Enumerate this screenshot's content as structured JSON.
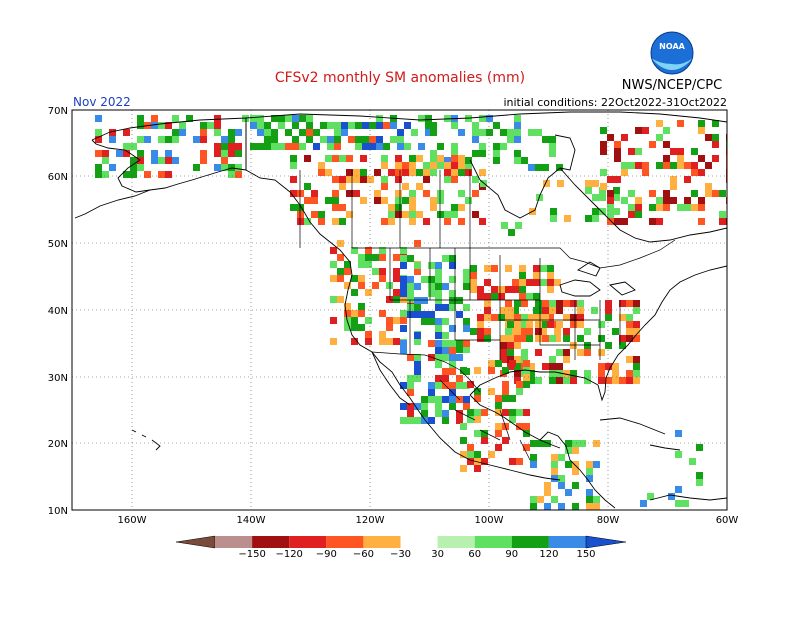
{
  "header": {
    "title": "CFSv2 monthly SM anomalies (mm)",
    "month": "Nov 2022",
    "conditions": "initial conditions: 22Oct2022-31Oct2022",
    "agency": "NWS/NCEP/CPC",
    "logo_text": "NOAA"
  },
  "axes": {
    "lon_ticks": [
      "160W",
      "140W",
      "120W",
      "100W",
      "80W",
      "60W"
    ],
    "lat_ticks": [
      "70N",
      "60N",
      "50N",
      "40N",
      "30N",
      "20N",
      "10N"
    ]
  },
  "legend": {
    "labels": [
      "−150",
      "−120",
      "−90",
      "−60",
      "−30",
      "30",
      "60",
      "90",
      "120",
      "150"
    ],
    "colors": [
      "#7a4b3a",
      "#bc8f8f",
      "#a01010",
      "#e02020",
      "#ff5522",
      "#ffb040",
      "#ffffff",
      "#b8f0b0",
      "#60e060",
      "#14a014",
      "#3a8ae8",
      "#1850d0"
    ]
  },
  "colors": {
    "title": "#d11a1a",
    "month": "#2040c0"
  }
}
